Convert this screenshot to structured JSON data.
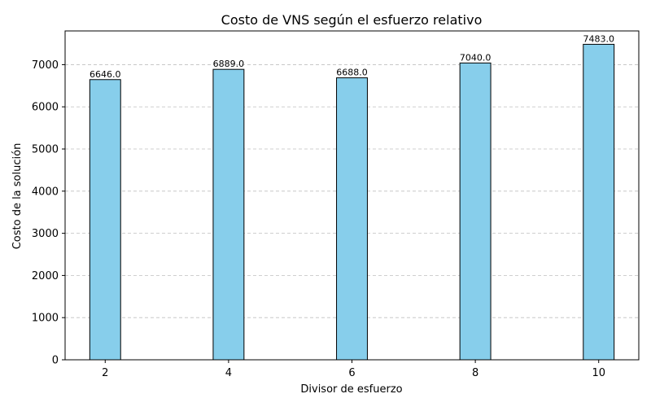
{
  "chart_data": {
    "type": "bar",
    "title": "Costo de VNS según el esfuerzo relativo",
    "xlabel": "Divisor de esfuerzo",
    "ylabel": "Costo de la solución",
    "x": [
      2,
      4,
      6,
      8,
      10
    ],
    "values": [
      6646.0,
      6889.0,
      6688.0,
      7040.0,
      7483.0
    ],
    "data_labels": [
      "6646.0",
      "6889.0",
      "6688.0",
      "7040.0",
      "7483.0"
    ],
    "x_ticks": [
      2,
      4,
      6,
      8,
      10
    ],
    "y_ticks": [
      0,
      1000,
      2000,
      3000,
      4000,
      5000,
      6000,
      7000
    ],
    "ylim": [
      0,
      7800
    ],
    "xlim": [
      1.35,
      10.65
    ],
    "bar_color": "#87ceeb",
    "bar_edge_color": "#000000",
    "grid": "y-dashed"
  }
}
